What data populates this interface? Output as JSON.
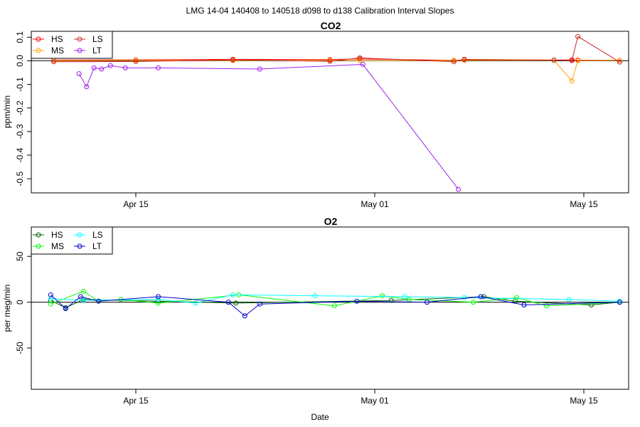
{
  "suptitle": "LMG  14-04    140408 to 140518    d098 to d138   Calibration Interval Slopes",
  "xlabel": "Date",
  "x_ticks": [
    "Apr 15",
    "May 01",
    "May 15"
  ],
  "chart_data": [
    {
      "type": "line",
      "title": "CO2",
      "ylabel": "ppm/min",
      "xlabel": "",
      "x_unit": "day of year 2014",
      "xlim": [
        98,
        138
      ],
      "ylim": [
        -0.56,
        0.125
      ],
      "y_ticks": [
        0.1,
        0.0,
        -0.1,
        -0.2,
        -0.3,
        -0.4,
        -0.5
      ],
      "y_tick_labels": [
        "0.1",
        "0.0",
        "-0.1",
        "-0.2",
        "-0.3",
        "-0.4",
        "-0.5"
      ],
      "reference_line": 0,
      "legend": {
        "placement": "top-left",
        "columns": 2,
        "labels": [
          "HS",
          "MS",
          "LS",
          "LT"
        ]
      },
      "series": [
        {
          "name": "HS",
          "color": "#ff0000",
          "x": [
            99.5,
            105,
            111.5,
            118,
            120,
            126.3,
            127,
            133,
            134.2,
            134.6,
            137.4
          ],
          "y": [
            0.003,
            0.004,
            0.006,
            0.005,
            0.008,
            0.002,
            0.004,
            0.003,
            0.004,
            0.003,
            0.002
          ]
        },
        {
          "name": "MS",
          "color": "#ffa500",
          "x": [
            99.5,
            105,
            111.5,
            118,
            120,
            126.3,
            127,
            133,
            134.2,
            134.6,
            137.4
          ],
          "y": [
            0.001,
            0.002,
            0.001,
            0.002,
            0.001,
            0.001,
            0.002,
            0.002,
            -0.085,
            0.001,
            0.002
          ]
        },
        {
          "name": "LS",
          "color": "#cd2626",
          "x": [
            99.5,
            105,
            111.5,
            118,
            120,
            126.3,
            127,
            133,
            134.2,
            134.6,
            137.4
          ],
          "y": [
            -0.004,
            -0.003,
            0.004,
            -0.002,
            0.012,
            -0.004,
            0.006,
            0.003,
            0.001,
            0.103,
            -0.005
          ]
        },
        {
          "name": "LT",
          "color": "#a020f0",
          "x": [
            101.2,
            101.7,
            102.2,
            102.7,
            103.3,
            104.3,
            106.5,
            113.3,
            120.2,
            126.6
          ],
          "y": [
            -0.055,
            -0.11,
            -0.03,
            -0.035,
            -0.02,
            -0.03,
            -0.03,
            -0.035,
            -0.015,
            -0.545
          ]
        }
      ]
    },
    {
      "type": "line",
      "title": "O2",
      "ylabel": "per meg/min",
      "xlabel": "Date",
      "x_unit": "day of year 2014",
      "xlim": [
        98,
        138
      ],
      "ylim": [
        -95,
        82
      ],
      "y_ticks": [
        50,
        0,
        -50
      ],
      "y_tick_labels": [
        "50",
        "0",
        "-50"
      ],
      "reference_line": 0,
      "legend": {
        "placement": "top-left",
        "columns": 2,
        "labels": [
          "HS",
          "MS",
          "LS",
          "LT"
        ]
      },
      "series": [
        {
          "name": "HS",
          "color": "#006400",
          "x": [
            99.3,
            100.3,
            101.5,
            106.5,
            111.7,
            122.1,
            128.3,
            130.4,
            135.5,
            137.4
          ],
          "y": [
            2,
            -6,
            3,
            1,
            -1,
            2,
            6,
            1,
            -3,
            0
          ]
        },
        {
          "name": "MS",
          "color": "#00ff00",
          "x": [
            99.3,
            101.5,
            102.5,
            104,
            106.5,
            111.9,
            118.3,
            121.5,
            123.3,
            127.6,
            130.5,
            132.5,
            137.4
          ],
          "y": [
            -2,
            12,
            1,
            3,
            -1,
            8,
            -4,
            7,
            3,
            0,
            5,
            -4,
            0
          ]
        },
        {
          "name": "LS",
          "color": "#00ffff",
          "x": [
            99.3,
            101.5,
            106.5,
            109,
            111.5,
            117,
            123,
            127,
            134,
            137.4
          ],
          "y": [
            4,
            2,
            3,
            -1,
            8,
            7,
            6,
            5,
            3,
            1
          ]
        },
        {
          "name": "LT",
          "color": "#0000cd",
          "x": [
            99.3,
            100.3,
            101.3,
            102.5,
            106.5,
            111.2,
            112.3,
            113.3,
            119.8,
            124.5,
            128.1,
            131,
            137.4
          ],
          "y": [
            8,
            -7,
            6,
            1,
            6,
            0,
            -15,
            -2,
            1,
            0,
            6,
            -3,
            0
          ]
        }
      ]
    }
  ]
}
